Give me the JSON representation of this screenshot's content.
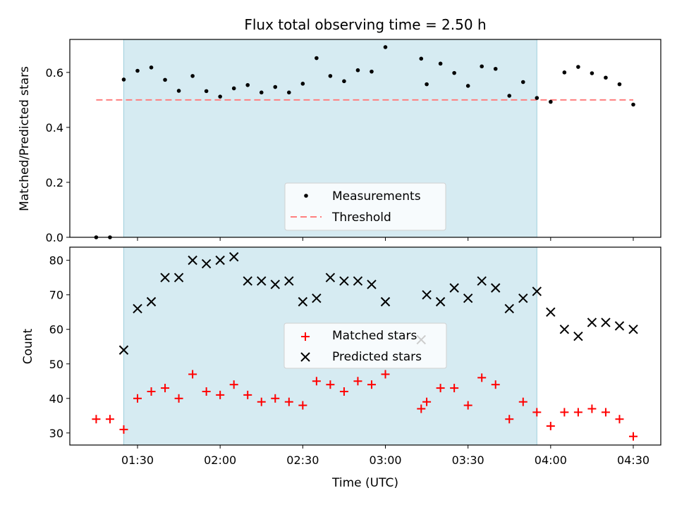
{
  "chart_data": [
    {
      "type": "scatter",
      "title": "Flux total observing time = 2.50 h",
      "xlabel": "",
      "ylabel": "Matched/Predicted stars",
      "ylim": [
        0,
        0.72
      ],
      "yticks": [
        "0.0",
        "0.2",
        "0.4",
        "0.6"
      ],
      "shaded_region": {
        "start": "01:25",
        "end": "03:55",
        "color": "#add8e6"
      },
      "threshold": {
        "name": "Threshold",
        "value": 0.5,
        "color": "#ff7f7f",
        "style": "dashed",
        "x_start": "01:15",
        "x_end": "04:30"
      },
      "legend": {
        "position": "lower-center",
        "entries": [
          "Measurements",
          "Threshold"
        ]
      },
      "series": [
        {
          "name": "Measurements",
          "color": "#000000",
          "marker": "dot",
          "points": [
            [
              "01:15",
              0.0
            ],
            [
              "01:20",
              0.0
            ],
            [
              "01:25",
              0.574
            ],
            [
              "01:30",
              0.606
            ],
            [
              "01:35",
              0.618
            ],
            [
              "01:40",
              0.573
            ],
            [
              "01:45",
              0.533
            ],
            [
              "01:50",
              0.587
            ],
            [
              "01:55",
              0.532
            ],
            [
              "02:00",
              0.512
            ],
            [
              "02:05",
              0.542
            ],
            [
              "02:10",
              0.554
            ],
            [
              "02:15",
              0.527
            ],
            [
              "02:20",
              0.547
            ],
            [
              "02:25",
              0.527
            ],
            [
              "02:30",
              0.559
            ],
            [
              "02:35",
              0.652
            ],
            [
              "02:40",
              0.587
            ],
            [
              "02:45",
              0.568
            ],
            [
              "02:50",
              0.608
            ],
            [
              "02:55",
              0.603
            ],
            [
              "03:00",
              0.692
            ],
            [
              "03:13",
              0.65
            ],
            [
              "03:15",
              0.557
            ],
            [
              "03:20",
              0.632
            ],
            [
              "03:25",
              0.598
            ],
            [
              "03:30",
              0.551
            ],
            [
              "03:35",
              0.622
            ],
            [
              "03:40",
              0.613
            ],
            [
              "03:45",
              0.515
            ],
            [
              "03:50",
              0.565
            ],
            [
              "03:55",
              0.507
            ],
            [
              "04:00",
              0.493
            ],
            [
              "04:05",
              0.6
            ],
            [
              "04:10",
              0.62
            ],
            [
              "04:15",
              0.597
            ],
            [
              "04:20",
              0.581
            ],
            [
              "04:25",
              0.557
            ],
            [
              "04:30",
              0.483
            ]
          ]
        }
      ]
    },
    {
      "type": "scatter",
      "title": "",
      "xlabel": "Time (UTC)",
      "ylabel": "Count",
      "ylim": [
        26.5,
        83.8
      ],
      "yticks": [
        "30",
        "40",
        "50",
        "60",
        "70",
        "80"
      ],
      "xticks": [
        "01:30",
        "02:00",
        "02:30",
        "03:00",
        "03:30",
        "04:00",
        "04:30"
      ],
      "shaded_region": {
        "start": "01:25",
        "end": "03:55",
        "color": "#add8e6"
      },
      "legend": {
        "position": "center",
        "entries": [
          "Matched stars",
          "Predicted stars"
        ]
      },
      "series": [
        {
          "name": "Matched stars",
          "color": "#ff0000",
          "marker": "plus",
          "points": [
            [
              "01:15",
              34
            ],
            [
              "01:20",
              34
            ],
            [
              "01:25",
              31
            ],
            [
              "01:30",
              40
            ],
            [
              "01:35",
              42
            ],
            [
              "01:40",
              43
            ],
            [
              "01:45",
              40
            ],
            [
              "01:50",
              47
            ],
            [
              "01:55",
              42
            ],
            [
              "02:00",
              41
            ],
            [
              "02:05",
              44
            ],
            [
              "02:10",
              41
            ],
            [
              "02:15",
              39
            ],
            [
              "02:20",
              40
            ],
            [
              "02:25",
              39
            ],
            [
              "02:30",
              38
            ],
            [
              "02:35",
              45
            ],
            [
              "02:40",
              44
            ],
            [
              "02:45",
              42
            ],
            [
              "02:50",
              45
            ],
            [
              "02:55",
              44
            ],
            [
              "03:00",
              47
            ],
            [
              "03:13",
              37
            ],
            [
              "03:15",
              39
            ],
            [
              "03:20",
              43
            ],
            [
              "03:25",
              43
            ],
            [
              "03:30",
              38
            ],
            [
              "03:35",
              46
            ],
            [
              "03:40",
              44
            ],
            [
              "03:45",
              34
            ],
            [
              "03:50",
              39
            ],
            [
              "03:55",
              36
            ],
            [
              "04:00",
              32
            ],
            [
              "04:05",
              36
            ],
            [
              "04:10",
              36
            ],
            [
              "04:15",
              37
            ],
            [
              "04:20",
              36
            ],
            [
              "04:25",
              34
            ],
            [
              "04:30",
              29
            ]
          ]
        },
        {
          "name": "Predicted stars",
          "color": "#000000",
          "marker": "x",
          "points": [
            [
              "01:25",
              54
            ],
            [
              "01:30",
              66
            ],
            [
              "01:35",
              68
            ],
            [
              "01:40",
              75
            ],
            [
              "01:45",
              75
            ],
            [
              "01:50",
              80
            ],
            [
              "01:55",
              79
            ],
            [
              "02:00",
              80
            ],
            [
              "02:05",
              81
            ],
            [
              "02:10",
              74
            ],
            [
              "02:15",
              74
            ],
            [
              "02:20",
              73
            ],
            [
              "02:25",
              74
            ],
            [
              "02:30",
              68
            ],
            [
              "02:35",
              69
            ],
            [
              "02:40",
              75
            ],
            [
              "02:45",
              74
            ],
            [
              "02:50",
              74
            ],
            [
              "02:55",
              73
            ],
            [
              "03:00",
              68
            ],
            [
              "03:13",
              57
            ],
            [
              "03:15",
              70
            ],
            [
              "03:20",
              68
            ],
            [
              "03:25",
              72
            ],
            [
              "03:30",
              69
            ],
            [
              "03:35",
              74
            ],
            [
              "03:40",
              72
            ],
            [
              "03:45",
              66
            ],
            [
              "03:50",
              69
            ],
            [
              "03:55",
              71
            ],
            [
              "04:00",
              65
            ],
            [
              "04:05",
              60
            ],
            [
              "04:10",
              58
            ],
            [
              "04:15",
              62
            ],
            [
              "04:20",
              62
            ],
            [
              "04:25",
              61
            ],
            [
              "04:30",
              60
            ]
          ]
        }
      ]
    }
  ]
}
